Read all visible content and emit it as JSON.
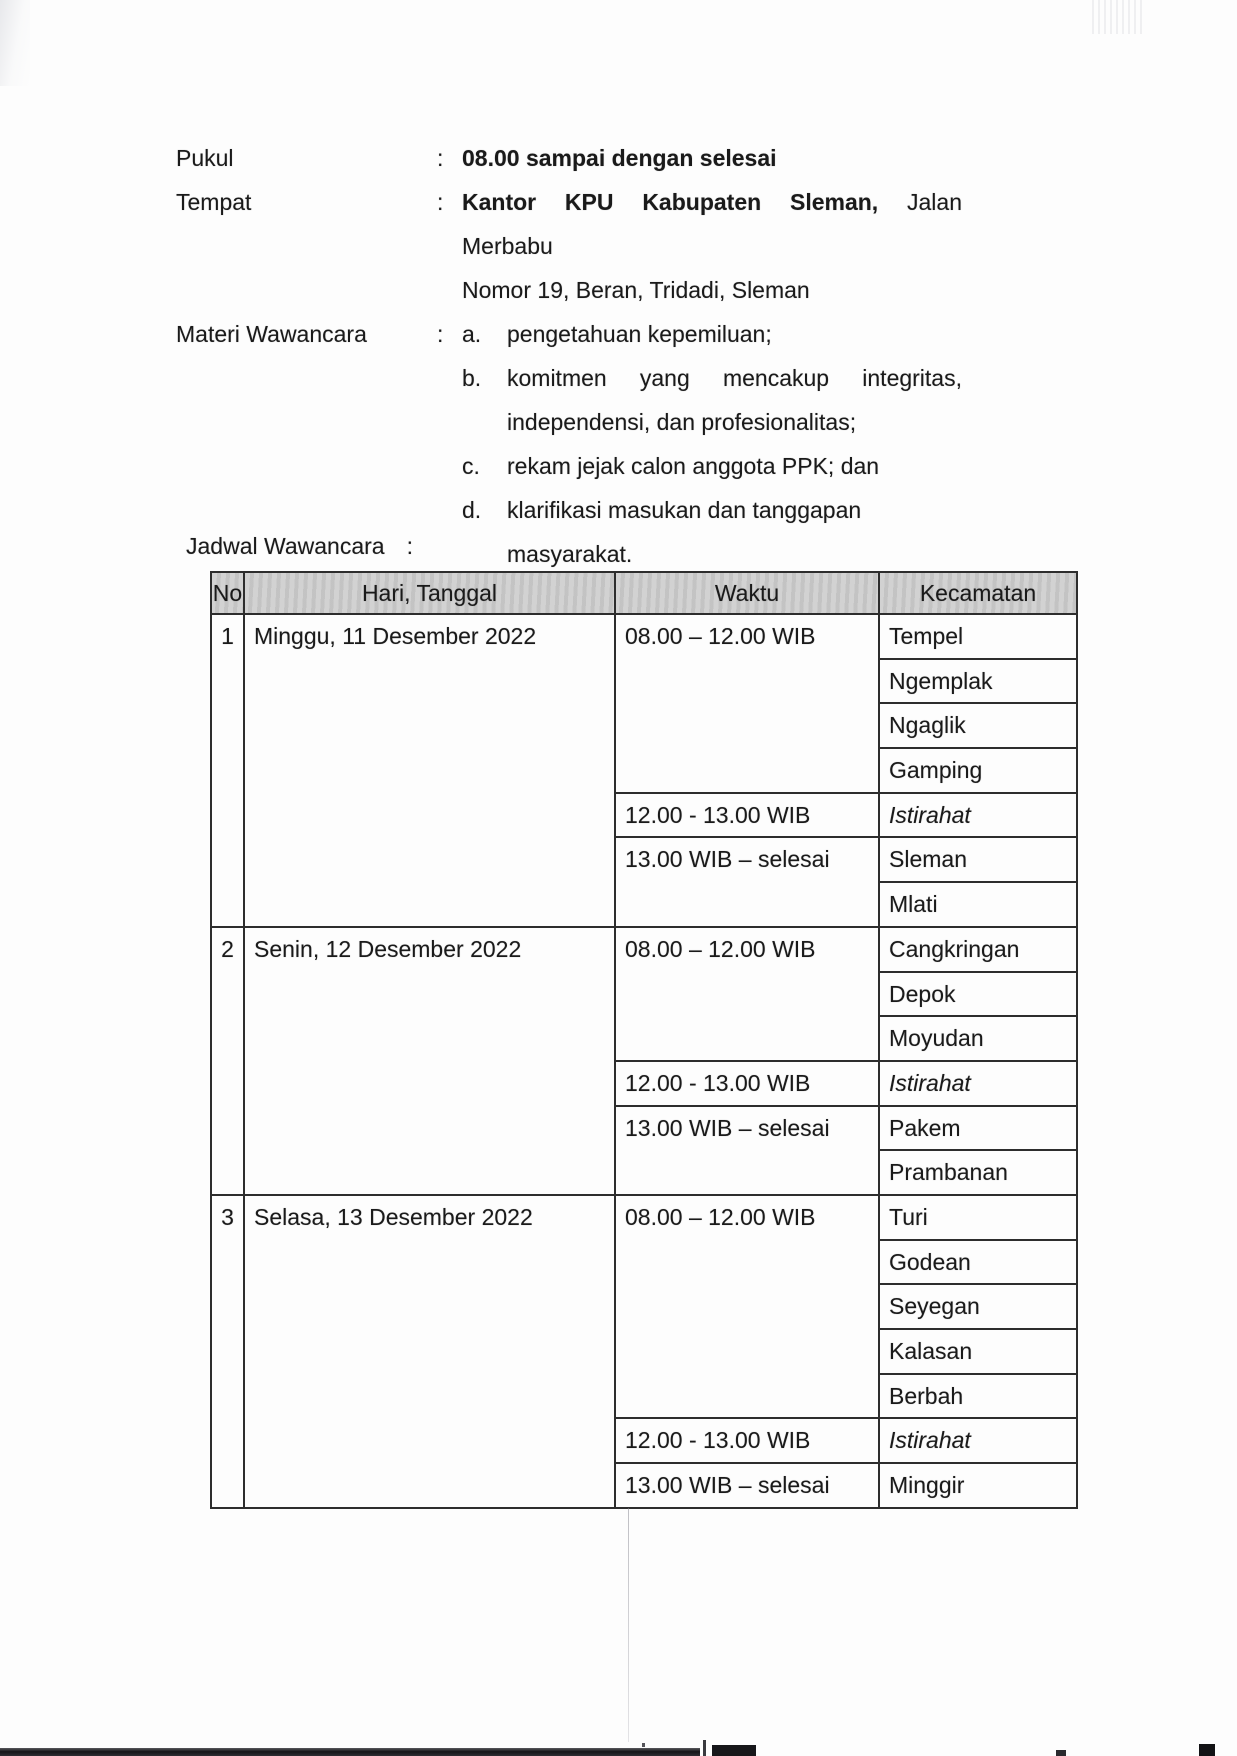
{
  "info": {
    "pukul": {
      "label": "Pukul",
      "colon": ":",
      "value": "08.00 sampai dengan selesai"
    },
    "tempat": {
      "label": "Tempat",
      "colon": ":",
      "value_bold": "Kantor KPU Kabupaten Sleman,",
      "value_regular": "Jalan Merbabu",
      "value_line2": "Nomor 19, Beran, Tridadi, Sleman"
    },
    "materi": {
      "label": "Materi Wawancara",
      "colon": ":",
      "items": [
        {
          "letter": "a.",
          "text": "pengetahuan kepemiluan;"
        },
        {
          "letter": "b.",
          "line1": "komitmen yang mencakup integritas,",
          "line2": "independensi, dan profesionalitas;"
        },
        {
          "letter": "c.",
          "text": "rekam jejak calon anggota PPK; dan"
        },
        {
          "letter": "d.",
          "text": "klarifikasi masukan dan tanggapan masyarakat."
        }
      ]
    }
  },
  "schedule": {
    "title": "Jadwal Wawancara",
    "colon": ":",
    "table": {
      "headers": [
        "No",
        "Hari, Tanggal",
        "Waktu",
        "Kecamatan"
      ],
      "days": [
        {
          "no": "1",
          "date": "Minggu, 11 Desember 2022",
          "slots": [
            {
              "time": "08.00 – 12.00 WIB",
              "areas": [
                "Tempel",
                "Ngemplak",
                "Ngaglik",
                "Gamping"
              ]
            },
            {
              "time": "12.00 - 13.00 WIB",
              "areas": [
                "Istirahat"
              ]
            },
            {
              "time": "13.00 WIB – selesai",
              "areas": [
                "Sleman",
                "Mlati"
              ]
            }
          ]
        },
        {
          "no": "2",
          "date": "Senin, 12 Desember 2022",
          "slots": [
            {
              "time": "08.00 – 12.00 WIB",
              "areas": [
                "Cangkringan",
                "Depok",
                "Moyudan"
              ]
            },
            {
              "time": "12.00 - 13.00 WIB",
              "areas": [
                "Istirahat"
              ]
            },
            {
              "time": "13.00 WIB – selesai",
              "areas": [
                "Pakem",
                "Prambanan"
              ]
            }
          ]
        },
        {
          "no": "3",
          "date": "Selasa, 13 Desember 2022",
          "slots": [
            {
              "time": "08.00 – 12.00 WIB",
              "areas": [
                "Turi",
                "Godean",
                "Seyegan",
                "Kalasan",
                "Berbah"
              ]
            },
            {
              "time": "12.00 - 13.00 WIB",
              "areas": [
                "Istirahat"
              ]
            },
            {
              "time": "13.00 WIB – selesai",
              "areas": [
                "Minggir"
              ]
            }
          ]
        }
      ]
    }
  },
  "colors": {
    "header_bg": "#cbcbcb",
    "text": "#1a1a1a",
    "border": "#2d2d2d",
    "artifact_dark": "#17171a"
  }
}
